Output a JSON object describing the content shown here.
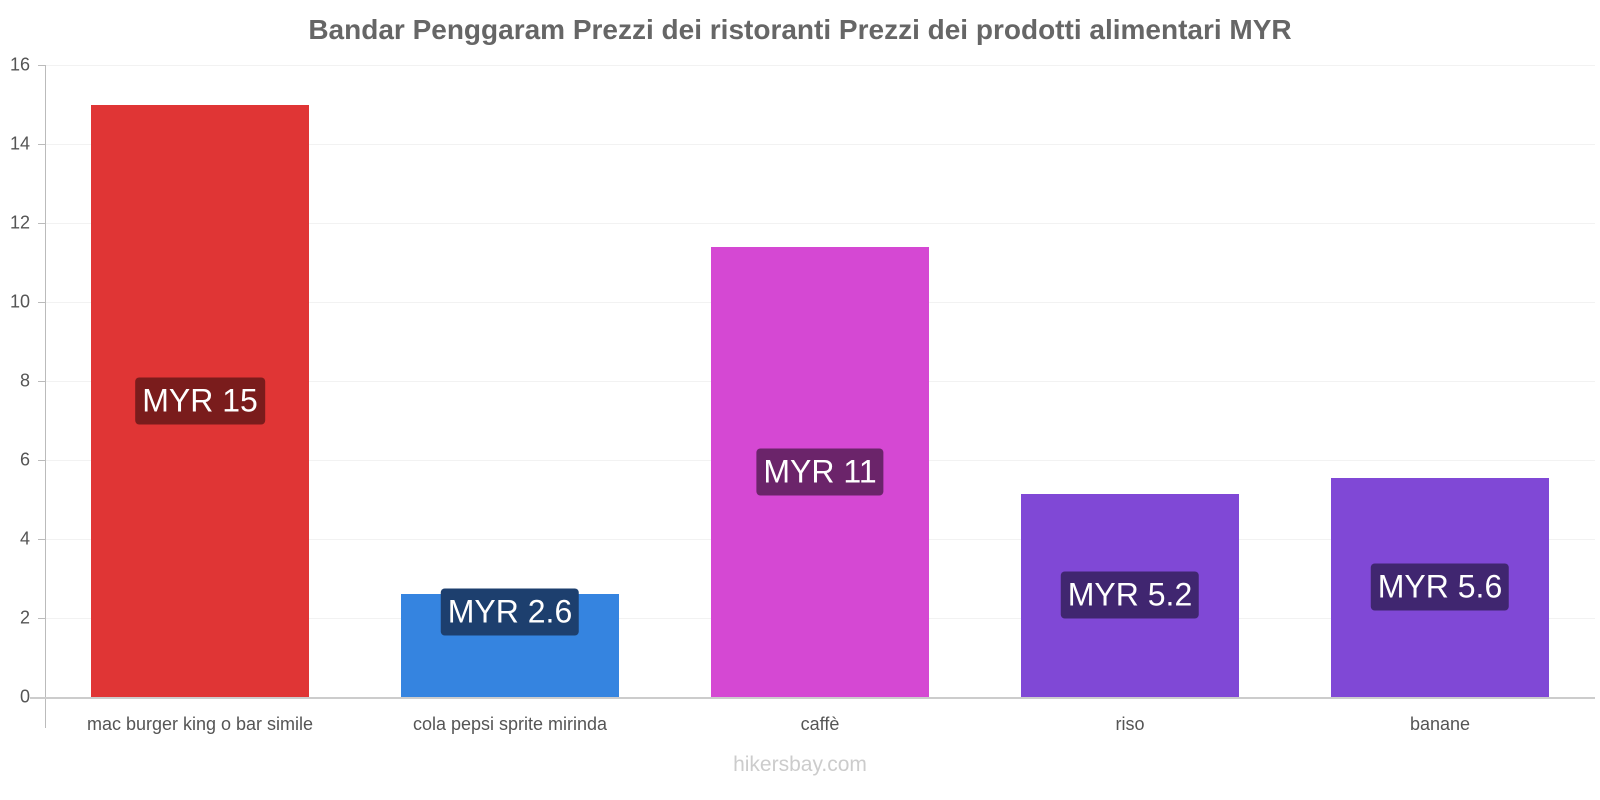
{
  "chart_data": {
    "type": "bar",
    "title": "Bandar Penggaram Prezzi dei ristoranti Prezzi dei prodotti alimentari MYR",
    "xlabel": "",
    "ylabel": "",
    "ylim": [
      0,
      16
    ],
    "yticks": [
      "0",
      "2",
      "4",
      "6",
      "8",
      "10",
      "12",
      "14",
      "16"
    ],
    "grid": true,
    "legend": "none",
    "categories": [
      "mac burger king o bar simile",
      "cola pepsi sprite mirinda",
      "caffè",
      "riso",
      "banane"
    ],
    "values": [
      15,
      2.6,
      11.4,
      5.15,
      5.55
    ],
    "labels": [
      "MYR 15",
      "MYR 2.6",
      "MYR 11",
      "MYR 5.2",
      "MYR 5.6"
    ],
    "colors": [
      "#e03535",
      "#3584e0",
      "#d548d3",
      "#8048d6",
      "#8048d6"
    ],
    "label_bg_colors": [
      "#7a1c1c",
      "#1d3f6e",
      "#6b246a",
      "#402670",
      "#402670"
    ]
  },
  "footer": "hikersbay.com"
}
